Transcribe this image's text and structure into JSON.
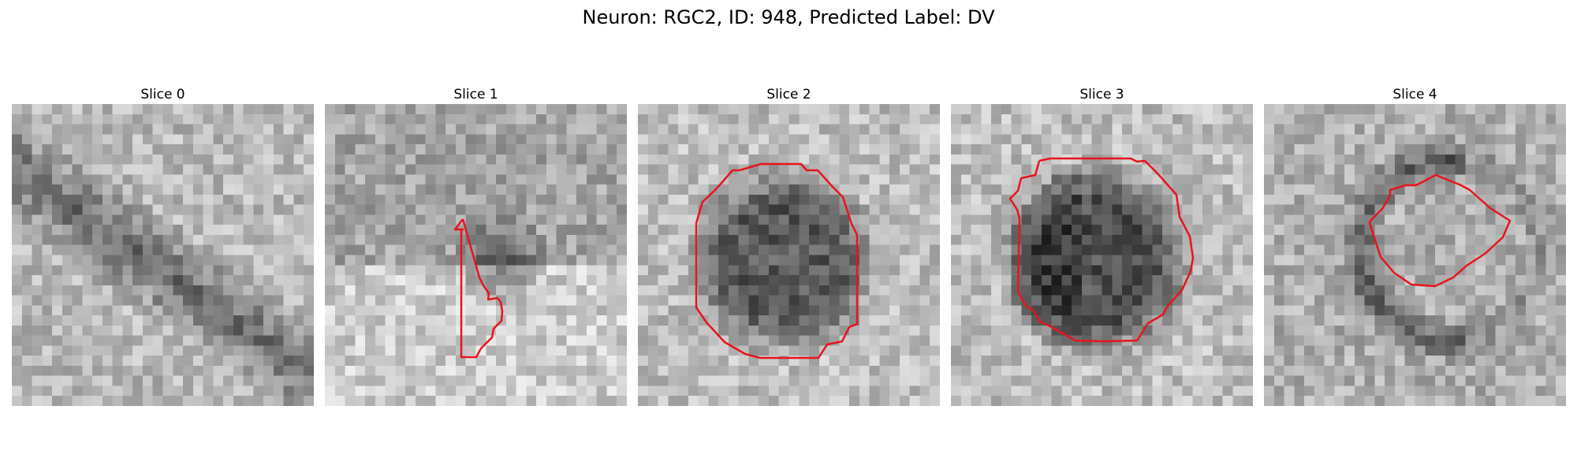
{
  "figure": {
    "title": "Neuron: RGC2, ID: 948, Predicted Label: DV"
  },
  "slices": [
    {
      "title": "Slice 0"
    },
    {
      "title": "Slice 1"
    },
    {
      "title": "Slice 2"
    },
    {
      "title": "Slice 3"
    },
    {
      "title": "Slice 4"
    }
  ],
  "colors": {
    "contour": "#e8141c",
    "background": "#ffffff"
  }
}
